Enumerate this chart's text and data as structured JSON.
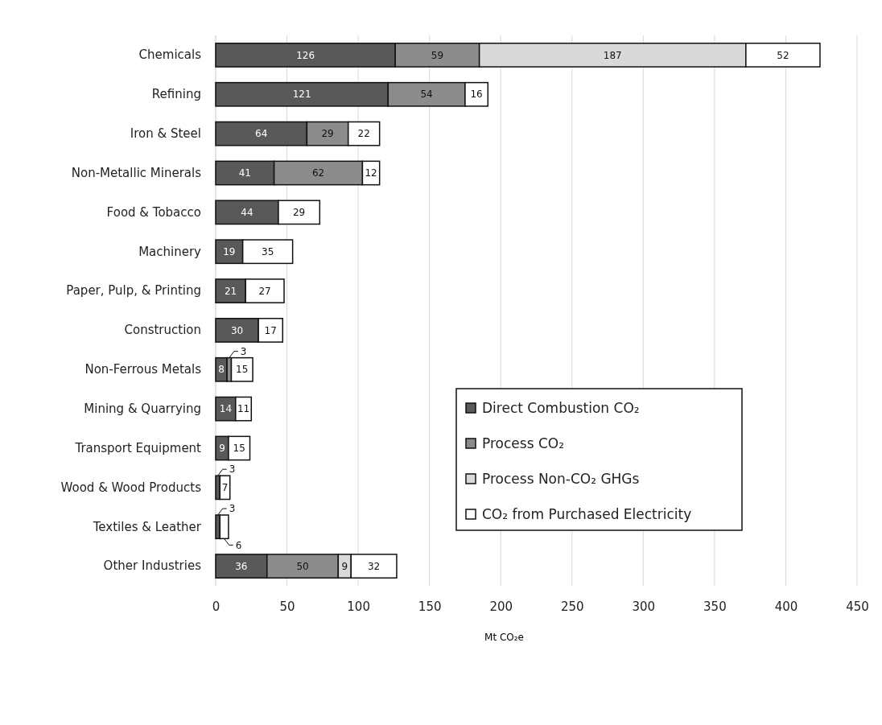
{
  "chart_data": {
    "type": "bar",
    "orientation": "horizontal",
    "stacked": true,
    "data_labels": true,
    "categories": [
      "Chemicals",
      "Refining",
      "Iron & Steel",
      "Non-Metallic Minerals",
      "Food & Tobacco",
      "Machinery",
      "Paper, Pulp, & Printing",
      "Construction",
      "Non-Ferrous Metals",
      "Mining & Quarrying",
      "Transport Equipment",
      "Wood & Wood Products",
      "Textiles & Leather",
      "Other Industries"
    ],
    "series": [
      {
        "name": "Direct Combustion CO₂",
        "color": "#595959",
        "values": [
          126,
          121,
          64,
          41,
          44,
          19,
          21,
          30,
          8,
          14,
          9,
          3,
          3,
          36
        ]
      },
      {
        "name": "Process CO₂",
        "color": "#8c8c8c",
        "values": [
          59,
          54,
          29,
          62,
          null,
          null,
          null,
          null,
          3,
          null,
          null,
          null,
          null,
          50
        ]
      },
      {
        "name": "Process Non-CO₂ GHGs",
        "color": "#d9d9d9",
        "values": [
          187,
          null,
          null,
          null,
          null,
          null,
          null,
          null,
          null,
          null,
          null,
          null,
          null,
          9
        ]
      },
      {
        "name": "CO₂ from Purchased Electricity",
        "color": "#ffffff",
        "values": [
          52,
          16,
          22,
          12,
          29,
          35,
          27,
          17,
          15,
          11,
          15,
          7,
          6,
          32
        ]
      }
    ],
    "xlim": [
      0,
      450
    ],
    "xticks": [
      0,
      50,
      100,
      150,
      200,
      250,
      300,
      350,
      400,
      450
    ],
    "grid": "x",
    "legend": "right",
    "xlabel": "Mt CO₂e"
  }
}
